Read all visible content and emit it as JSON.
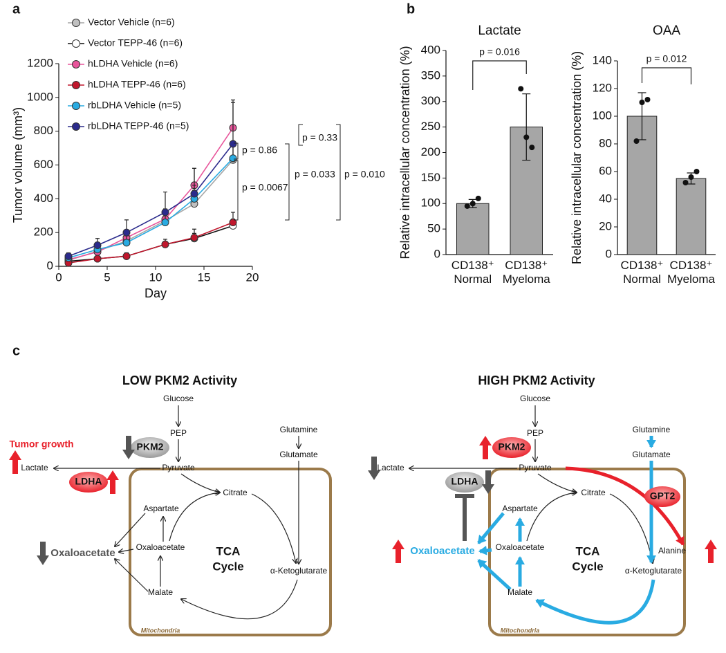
{
  "panel_labels": [
    "a",
    "b",
    "c"
  ],
  "chart_data": [
    {
      "type": "line",
      "xlabel": "Day",
      "ylabel": "Tumor volume (mm³)",
      "x": [
        1,
        4,
        7,
        11,
        14,
        18
      ],
      "xlim": [
        0,
        20
      ],
      "xticks": [
        0,
        5,
        10,
        15,
        20
      ],
      "ylim": [
        0,
        1200
      ],
      "yticks": [
        0,
        200,
        400,
        600,
        800,
        1000,
        1200
      ],
      "series": [
        {
          "name": "Vector Vehicle (n=6)",
          "color": "#a6a6a6",
          "marker_color": "#c0c0c0",
          "values": [
            35,
            90,
            150,
            270,
            370,
            630
          ],
          "errors": [
            10,
            30,
            40,
            60,
            80,
            100
          ]
        },
        {
          "name": "Vector TEPP-46 (n=6)",
          "color": "#111111",
          "marker_color": "#ffffff",
          "values": [
            30,
            45,
            60,
            130,
            165,
            240
          ],
          "errors": [
            10,
            10,
            20,
            30,
            30,
            40
          ]
        },
        {
          "name": "hLDHA Vehicle (n=6)",
          "color": "#e8559b",
          "marker_color": "#e8559b",
          "values": [
            40,
            85,
            170,
            280,
            480,
            820
          ],
          "errors": [
            10,
            20,
            40,
            60,
            100,
            150
          ]
        },
        {
          "name": "hLDHA TEPP-46 (n=6)",
          "color": "#c0172d",
          "marker_color": "#c0172d",
          "values": [
            20,
            45,
            60,
            130,
            170,
            260
          ],
          "errors": [
            10,
            10,
            20,
            30,
            50,
            60
          ]
        },
        {
          "name": "rbLDHA Vehicle (n=5)",
          "color": "#29abe2",
          "marker_color": "#29abe2",
          "values": [
            50,
            100,
            140,
            260,
            400,
            640
          ],
          "errors": [
            15,
            30,
            40,
            60,
            80,
            100
          ]
        },
        {
          "name": "rbLDHA TEPP-46 (n=5)",
          "color": "#2b2b8c",
          "marker_color": "#2b2b8c",
          "values": [
            60,
            125,
            200,
            320,
            430,
            725
          ],
          "errors": [
            20,
            40,
            75,
            120,
            150,
            260
          ]
        }
      ],
      "annotations": [
        "p = 0.86",
        "p = 0.0067",
        "p = 0.033",
        "p = 0.33",
        "p = 0.010"
      ]
    },
    {
      "type": "bar",
      "title": "Lactate",
      "ylabel": "Relative intracellular concentration (%)",
      "categories": [
        "CD138⁺\nNormal",
        "CD138⁺\nMyeloma"
      ],
      "values": [
        100,
        250
      ],
      "errors": [
        8,
        65
      ],
      "points": [
        [
          95,
          100,
          110
        ],
        [
          325,
          230,
          210
        ]
      ],
      "color": "#a6a6a6",
      "ylim": [
        0,
        400
      ],
      "yticks": [
        0,
        50,
        100,
        150,
        200,
        250,
        300,
        350,
        400
      ],
      "annotation": "p = 0.016"
    },
    {
      "type": "bar",
      "title": "OAA",
      "ylabel": "Relative intracellular concentration (%)",
      "categories": [
        "CD138⁺\nNormal",
        "CD138⁺\nMyeloma"
      ],
      "values": [
        100,
        55
      ],
      "errors": [
        17,
        4
      ],
      "points": [
        [
          82,
          110,
          112
        ],
        [
          52,
          56,
          60
        ]
      ],
      "color": "#a6a6a6",
      "ylim": [
        0,
        140
      ],
      "yticks": [
        0,
        20,
        40,
        60,
        80,
        100,
        120,
        140
      ],
      "annotation": "p = 0.012"
    }
  ],
  "diagram": {
    "low": {
      "title": "LOW PKM2 Activity",
      "glucose": "Glucose",
      "pep": "PEP",
      "pyruvate": "Pyruvate",
      "lactate": "Lactate",
      "glutamine": "Glutamine",
      "glutamate": "Glutamate",
      "citrate": "Citrate",
      "aspartate": "Aspartate",
      "oxaloacetate_inner": "Oxaloacetate",
      "malate": "Malate",
      "alpha_ketoglutarate": "α-Ketoglutarate",
      "tca_cycle": [
        "TCA",
        "Cycle"
      ],
      "oxaloacetate_outer": "Oxaloacetate",
      "pkm2": "PKM2",
      "ldha": "LDHA",
      "tumor_growth": "Tumor growth",
      "mitochondria": "Mitochondria"
    },
    "high": {
      "title": "HIGH PKM2 Activity",
      "glucose": "Glucose",
      "pep": "PEP",
      "pyruvate": "Pyruvate",
      "lactate": "Lactate",
      "glutamine": "Glutamine",
      "glutamate": "Glutamate",
      "citrate": "Citrate",
      "aspartate": "Aspartate",
      "oxaloacetate_inner": "Oxaloacetate",
      "malate": "Malate",
      "alpha_ketoglutarate": "α-Ketoglutarate",
      "tca_cycle": [
        "TCA",
        "Cycle"
      ],
      "oxaloacetate_outer": "Oxaloacetate",
      "pkm2": "PKM2",
      "ldha": "LDHA",
      "gpt2": "GPT2",
      "alanine": "Alanine",
      "mitochondria": "Mitochondria"
    }
  }
}
